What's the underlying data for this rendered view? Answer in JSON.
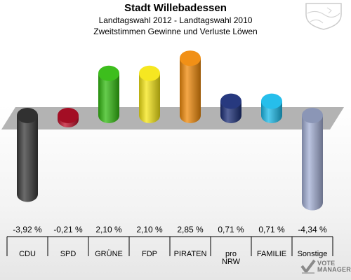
{
  "header": {
    "title": "Stadt Willebadessen",
    "subtitle1": "Landtagswahl 2012 - Landtagswahl 2010",
    "subtitle2": "Zweitstimmen Gewinne und Verluste Löwen"
  },
  "chart_data": {
    "type": "bar",
    "title": "Stadt Willebadessen",
    "subtitle": "Landtagswahl 2012 - Landtagswahl 2010 Zweitstimmen Gewinne und Verluste Löwen",
    "categories": [
      "CDU",
      "SPD",
      "GRÜNE",
      "FDP",
      "PIRATEN",
      "pro NRW",
      "FAMILIE",
      "Sonstige"
    ],
    "category_lines": [
      [
        "CDU"
      ],
      [
        "SPD"
      ],
      [
        "GRÜNE"
      ],
      [
        "FDP"
      ],
      [
        "PIRATEN"
      ],
      [
        "pro",
        "NRW"
      ],
      [
        "FAMILIE"
      ],
      [
        "Sonstige"
      ]
    ],
    "values": [
      -3.92,
      -0.21,
      2.1,
      2.1,
      2.85,
      0.71,
      0.71,
      -4.34
    ],
    "value_labels": [
      "-3,92 %",
      "-0,21 %",
      "2,10 %",
      "2,10 %",
      "2,85 %",
      "0,71 %",
      "0,71 %",
      "-4,34 %"
    ],
    "colors": [
      "#3a3a3a",
      "#c0102a",
      "#33bb11",
      "#f5e615",
      "#f08a0a",
      "#1c2f78",
      "#1bbbea",
      "#a4b0d6"
    ],
    "grid": false,
    "legend": "none"
  },
  "watermark": {
    "text_line1": "VOTE",
    "text_line2": "MANAGER"
  },
  "logo_icon": "coat-of-arms-icon"
}
